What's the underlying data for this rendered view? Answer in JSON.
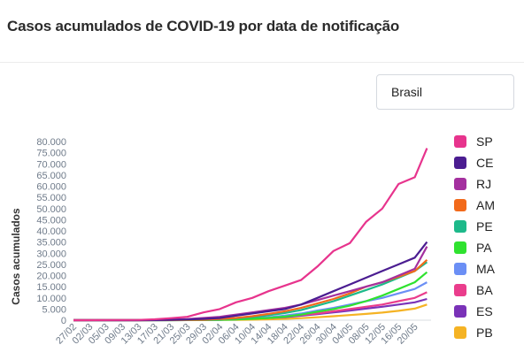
{
  "header": {
    "title": "Casos acumulados de COVID-19 por data de notificação"
  },
  "filter": {
    "selected": "Brasil"
  },
  "colors": {
    "SP": "#e7348d",
    "CE": "#4b1d91",
    "RJ": "#a4309f",
    "AM": "#f26a1b",
    "PE": "#1db98a",
    "PA": "#2fe22f",
    "MA": "#6b8ff5",
    "BA": "#ea3d8c",
    "ES": "#7a32b8",
    "PB": "#f5b324"
  },
  "chart_data": {
    "type": "line",
    "title": "Casos acumulados de COVID-19 por data de notificação",
    "xlabel": "",
    "ylabel": "Casos acumulados",
    "ylim": [
      0,
      80000
    ],
    "yticks": [
      "0",
      "5.000",
      "10.000",
      "15.000",
      "20.000",
      "25.000",
      "30.000",
      "35.000",
      "40.000",
      "45.000",
      "50.000",
      "55.000",
      "60.000",
      "65.000",
      "70.000",
      "75.000",
      "80.000"
    ],
    "xticks": [
      "27/02",
      "02/03",
      "05/03",
      "09/03",
      "13/03",
      "17/03",
      "21/03",
      "25/03",
      "29/03",
      "02/04",
      "06/04",
      "10/04",
      "14/04",
      "18/04",
      "22/04",
      "26/04",
      "30/04",
      "04/05",
      "08/05",
      "12/05",
      "16/05",
      "20/05"
    ],
    "grid": false,
    "legend_position": "right",
    "x_days": [
      0,
      16,
      20,
      24,
      28,
      32,
      36,
      40,
      44,
      48,
      52,
      56,
      60,
      64,
      68,
      72,
      76,
      80,
      84,
      87
    ],
    "series": [
      {
        "name": "SP",
        "values": [
          0,
          100,
          400,
          900,
          1500,
          3500,
          5000,
          8000,
          10000,
          13000,
          15500,
          18000,
          24000,
          31000,
          34500,
          44000,
          50000,
          61000,
          64000,
          77000
        ]
      },
      {
        "name": "CE",
        "values": [
          0,
          0,
          50,
          150,
          300,
          600,
          1000,
          2000,
          3000,
          4000,
          5000,
          7000,
          10000,
          13000,
          16000,
          19000,
          22000,
          25000,
          28000,
          35000
        ]
      },
      {
        "name": "RJ",
        "values": [
          0,
          0,
          100,
          300,
          500,
          1000,
          1500,
          2500,
          3500,
          4500,
          5500,
          7000,
          9000,
          11000,
          13000,
          15000,
          17000,
          20000,
          23000,
          33000
        ]
      },
      {
        "name": "AM",
        "values": [
          0,
          0,
          20,
          50,
          100,
          200,
          500,
          1000,
          1800,
          2800,
          4000,
          5500,
          7500,
          9500,
          12000,
          15000,
          17000,
          19500,
          22000,
          27000
        ]
      },
      {
        "name": "PE",
        "values": [
          0,
          0,
          20,
          50,
          100,
          200,
          400,
          800,
          1400,
          2200,
          3200,
          4500,
          6500,
          8500,
          11000,
          13500,
          16000,
          19000,
          22000,
          26000
        ]
      },
      {
        "name": "PA",
        "values": [
          0,
          0,
          0,
          10,
          30,
          80,
          150,
          300,
          600,
          1000,
          1600,
          2500,
          3800,
          5000,
          6500,
          8500,
          11000,
          14000,
          17000,
          21500
        ]
      },
      {
        "name": "MA",
        "values": [
          0,
          0,
          0,
          10,
          30,
          80,
          150,
          400,
          800,
          1300,
          2000,
          3000,
          4300,
          5500,
          7000,
          8500,
          10000,
          12000,
          14000,
          17000
        ]
      },
      {
        "name": "BA",
        "values": [
          0,
          0,
          10,
          30,
          80,
          150,
          300,
          500,
          800,
          1200,
          1700,
          2300,
          3000,
          4000,
          5000,
          6000,
          7000,
          8500,
          10000,
          12500
        ]
      },
      {
        "name": "ES",
        "values": [
          0,
          0,
          10,
          20,
          50,
          100,
          200,
          400,
          700,
          1000,
          1400,
          2000,
          2700,
          3500,
          4300,
          5200,
          6000,
          7000,
          8000,
          9500
        ]
      },
      {
        "name": "PB",
        "values": [
          0,
          0,
          0,
          10,
          20,
          50,
          100,
          150,
          250,
          400,
          600,
          900,
          1300,
          1800,
          2300,
          2800,
          3400,
          4200,
          5200,
          7000
        ]
      }
    ]
  }
}
